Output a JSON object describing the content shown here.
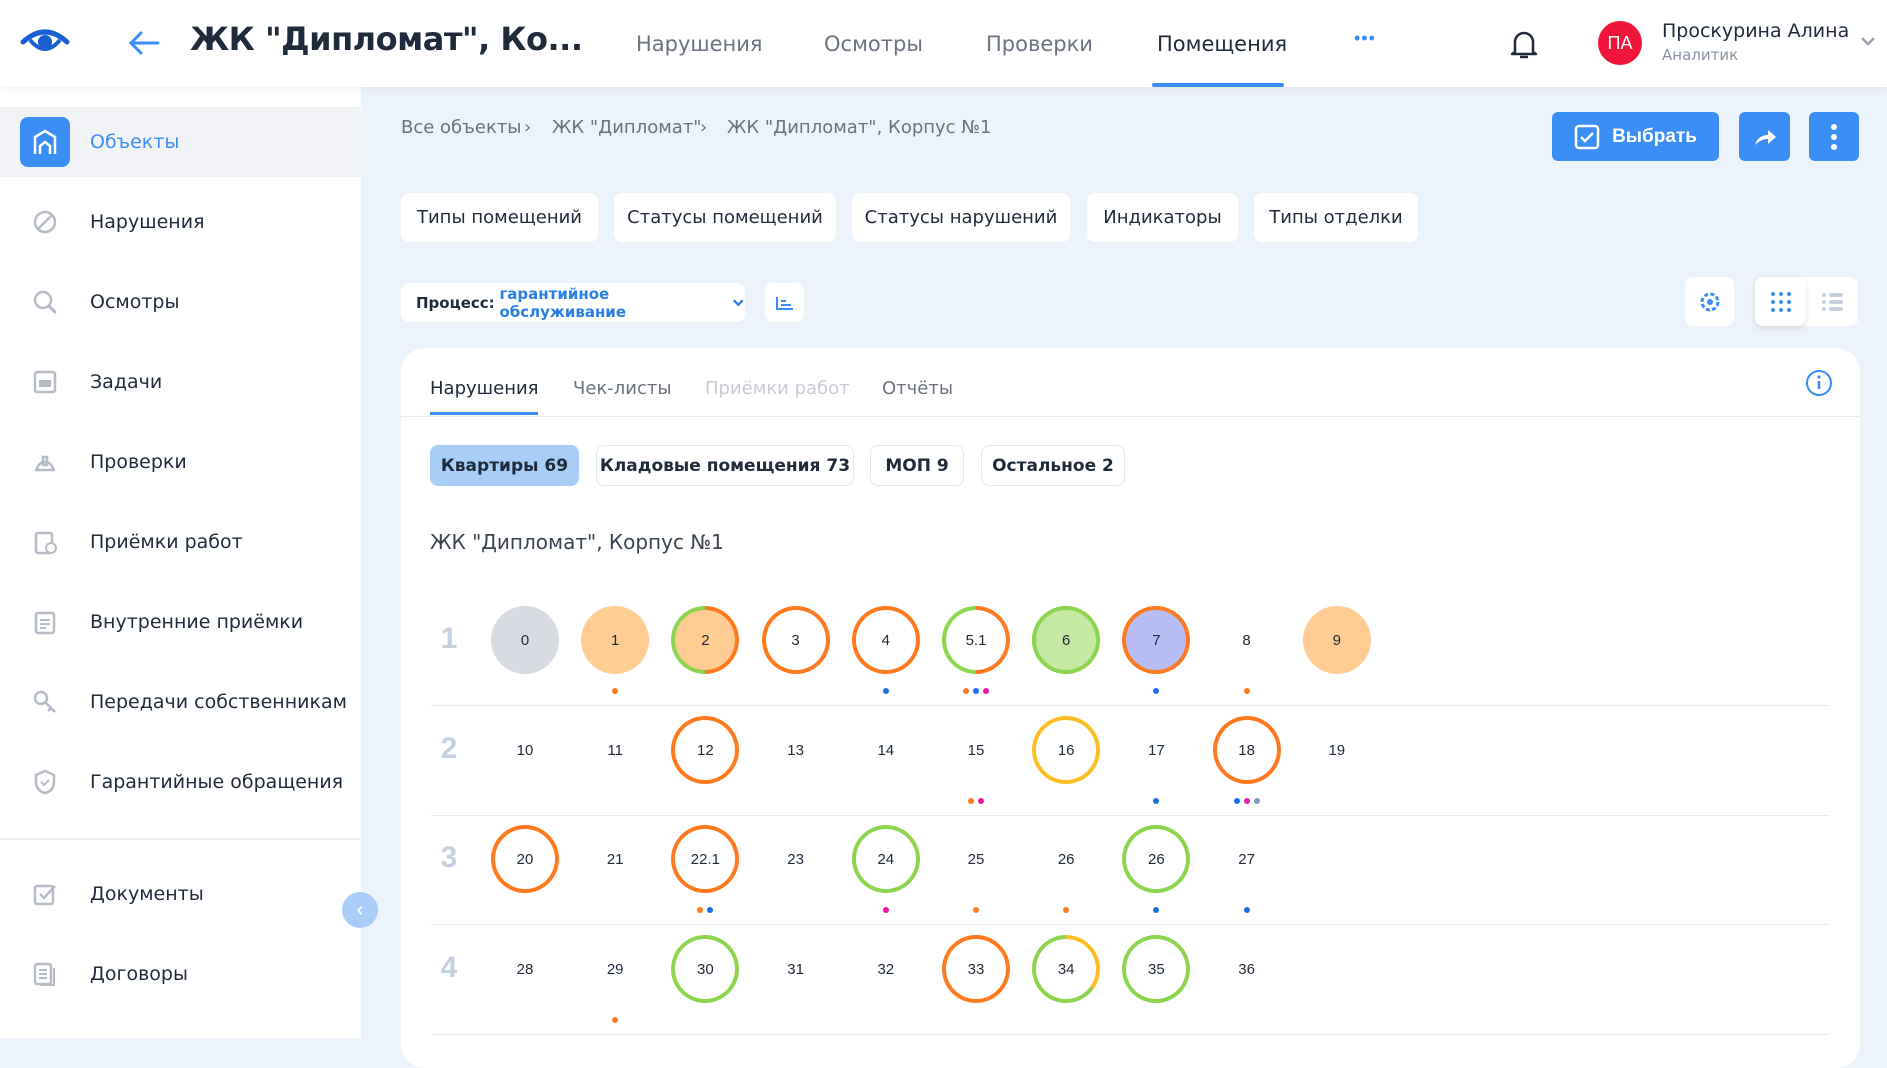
{
  "header": {
    "title": "ЖК \"Дипломат\", Ко...",
    "nav": [
      "Нарушения",
      "Осмотры",
      "Проверки",
      "Помещения"
    ],
    "active_nav": "Помещения",
    "more": "•••",
    "user": {
      "initials": "ПА",
      "name": "Проскурина Алина",
      "role": "Аналитик",
      "avatar_color": "#f0153a"
    }
  },
  "sidebar": {
    "items": [
      {
        "label": "Объекты",
        "icon": "building-icon",
        "active": true
      },
      {
        "label": "Нарушения",
        "icon": "ban-icon"
      },
      {
        "label": "Осмотры",
        "icon": "search-icon"
      },
      {
        "label": "Задачи",
        "icon": "task-icon"
      },
      {
        "label": "Проверки",
        "icon": "helmet-icon"
      },
      {
        "label": "Приёмки работ",
        "icon": "clipboard-check-icon"
      },
      {
        "label": "Внутренние приёмки",
        "icon": "clipboard-list-icon"
      },
      {
        "label": "Передачи собственникам",
        "icon": "key-icon"
      },
      {
        "label": "Гарантийные обращения",
        "icon": "shield-icon"
      }
    ],
    "bottom_items": [
      {
        "label": "Документы",
        "icon": "checkbox-icon"
      },
      {
        "label": "Договоры",
        "icon": "documents-icon"
      }
    ]
  },
  "breadcrumb": [
    "Все объекты",
    "ЖК \"Дипломат\"",
    "ЖК \"Дипломат\", Корпус №1"
  ],
  "toolbar": {
    "select_label": "Выбрать"
  },
  "filters": [
    "Типы помещений",
    "Статусы помещений",
    "Статусы нарушений",
    "Индикаторы",
    "Типы отделки"
  ],
  "process": {
    "label": "Процесс:",
    "value": "гарантийное обслуживание"
  },
  "tabs": [
    {
      "label": "Нарушения",
      "active": true
    },
    {
      "label": "Чек-листы"
    },
    {
      "label": "Приёмки работ",
      "disabled": true
    },
    {
      "label": "Отчёты"
    }
  ],
  "categories": [
    {
      "label": "Квартиры 69",
      "active": true
    },
    {
      "label": "Кладовые помещения 73"
    },
    {
      "label": "МОП 9"
    },
    {
      "label": "Остальное 2"
    }
  ],
  "section_title": "ЖК \"Дипломат\", Корпус №1",
  "colors": {
    "accent": "#3b8ef5",
    "orange": "#ff7a1f",
    "green": "#8dd44f",
    "yellow": "#fbbf24",
    "blue": "#1a6fe8",
    "magenta": "#e619a0",
    "slate": "#7f9cc0",
    "grey_fill": "#d8dbe2",
    "peach_fill": "#ffcc94",
    "green_fill": "#c5e8a3",
    "lavender_fill": "#b8bef5"
  },
  "floors": [
    {
      "label": "1",
      "cells": [
        {
          "n": "0",
          "fill": "grey_fill"
        },
        {
          "n": "1",
          "fill": "peach_fill",
          "dots": [
            "orange"
          ]
        },
        {
          "n": "2",
          "fill": "peach_fill",
          "ring": [
            [
              "orange",
              50
            ],
            [
              "green",
              50
            ]
          ]
        },
        {
          "n": "3",
          "ring": [
            [
              "orange",
              100
            ]
          ]
        },
        {
          "n": "4",
          "ring": [
            [
              "orange",
              100
            ]
          ],
          "dots": [
            "blue"
          ]
        },
        {
          "n": "5.1",
          "ring": [
            [
              "orange",
              50
            ],
            [
              "green",
              50
            ]
          ],
          "dots": [
            "orange",
            "blue",
            "magenta"
          ]
        },
        {
          "n": "6",
          "fill": "green_fill",
          "ring": [
            [
              "green",
              100
            ]
          ]
        },
        {
          "n": "7",
          "fill": "lavender_fill",
          "ring": [
            [
              "orange",
              100
            ]
          ],
          "dots": [
            "blue"
          ]
        },
        {
          "n": "8",
          "dots": [
            "orange"
          ]
        },
        {
          "n": "9",
          "fill": "peach_fill"
        }
      ]
    },
    {
      "label": "2",
      "cells": [
        {
          "n": "10"
        },
        {
          "n": "11"
        },
        {
          "n": "12",
          "ring": [
            [
              "orange",
              100
            ]
          ]
        },
        {
          "n": "13"
        },
        {
          "n": "14"
        },
        {
          "n": "15",
          "dots": [
            "orange",
            "magenta"
          ]
        },
        {
          "n": "16",
          "ring": [
            [
              "yellow",
              100
            ]
          ]
        },
        {
          "n": "17",
          "dots": [
            "blue"
          ]
        },
        {
          "n": "18",
          "ring": [
            [
              "orange",
              100
            ]
          ],
          "dots": [
            "blue",
            "magenta",
            "slate"
          ]
        },
        {
          "n": "19"
        }
      ]
    },
    {
      "label": "3",
      "cells": [
        {
          "n": "20",
          "ring": [
            [
              "orange",
              100
            ]
          ]
        },
        {
          "n": "21"
        },
        {
          "n": "22.1",
          "ring": [
            [
              "orange",
              100
            ]
          ],
          "dots": [
            "orange",
            "blue"
          ]
        },
        {
          "n": "23"
        },
        {
          "n": "24",
          "ring": [
            [
              "green",
              100
            ]
          ],
          "dots": [
            "magenta"
          ]
        },
        {
          "n": "25",
          "dots": [
            "orange"
          ]
        },
        {
          "n": "26",
          "dots": [
            "orange"
          ]
        },
        {
          "n": "26",
          "ring": [
            [
              "green",
              100
            ]
          ],
          "dots": [
            "blue"
          ]
        },
        {
          "n": "27",
          "dots": [
            "blue"
          ]
        }
      ]
    },
    {
      "label": "4",
      "cells": [
        {
          "n": "28"
        },
        {
          "n": "29",
          "dots": [
            "orange"
          ]
        },
        {
          "n": "30",
          "ring": [
            [
              "green",
              100
            ]
          ]
        },
        {
          "n": "31"
        },
        {
          "n": "32"
        },
        {
          "n": "33",
          "ring": [
            [
              "orange",
              100
            ]
          ]
        },
        {
          "n": "34",
          "ring": [
            [
              "yellow",
              35
            ],
            [
              "green",
              65
            ]
          ]
        },
        {
          "n": "35",
          "ring": [
            [
              "green",
              100
            ]
          ]
        },
        {
          "n": "36"
        }
      ]
    }
  ]
}
